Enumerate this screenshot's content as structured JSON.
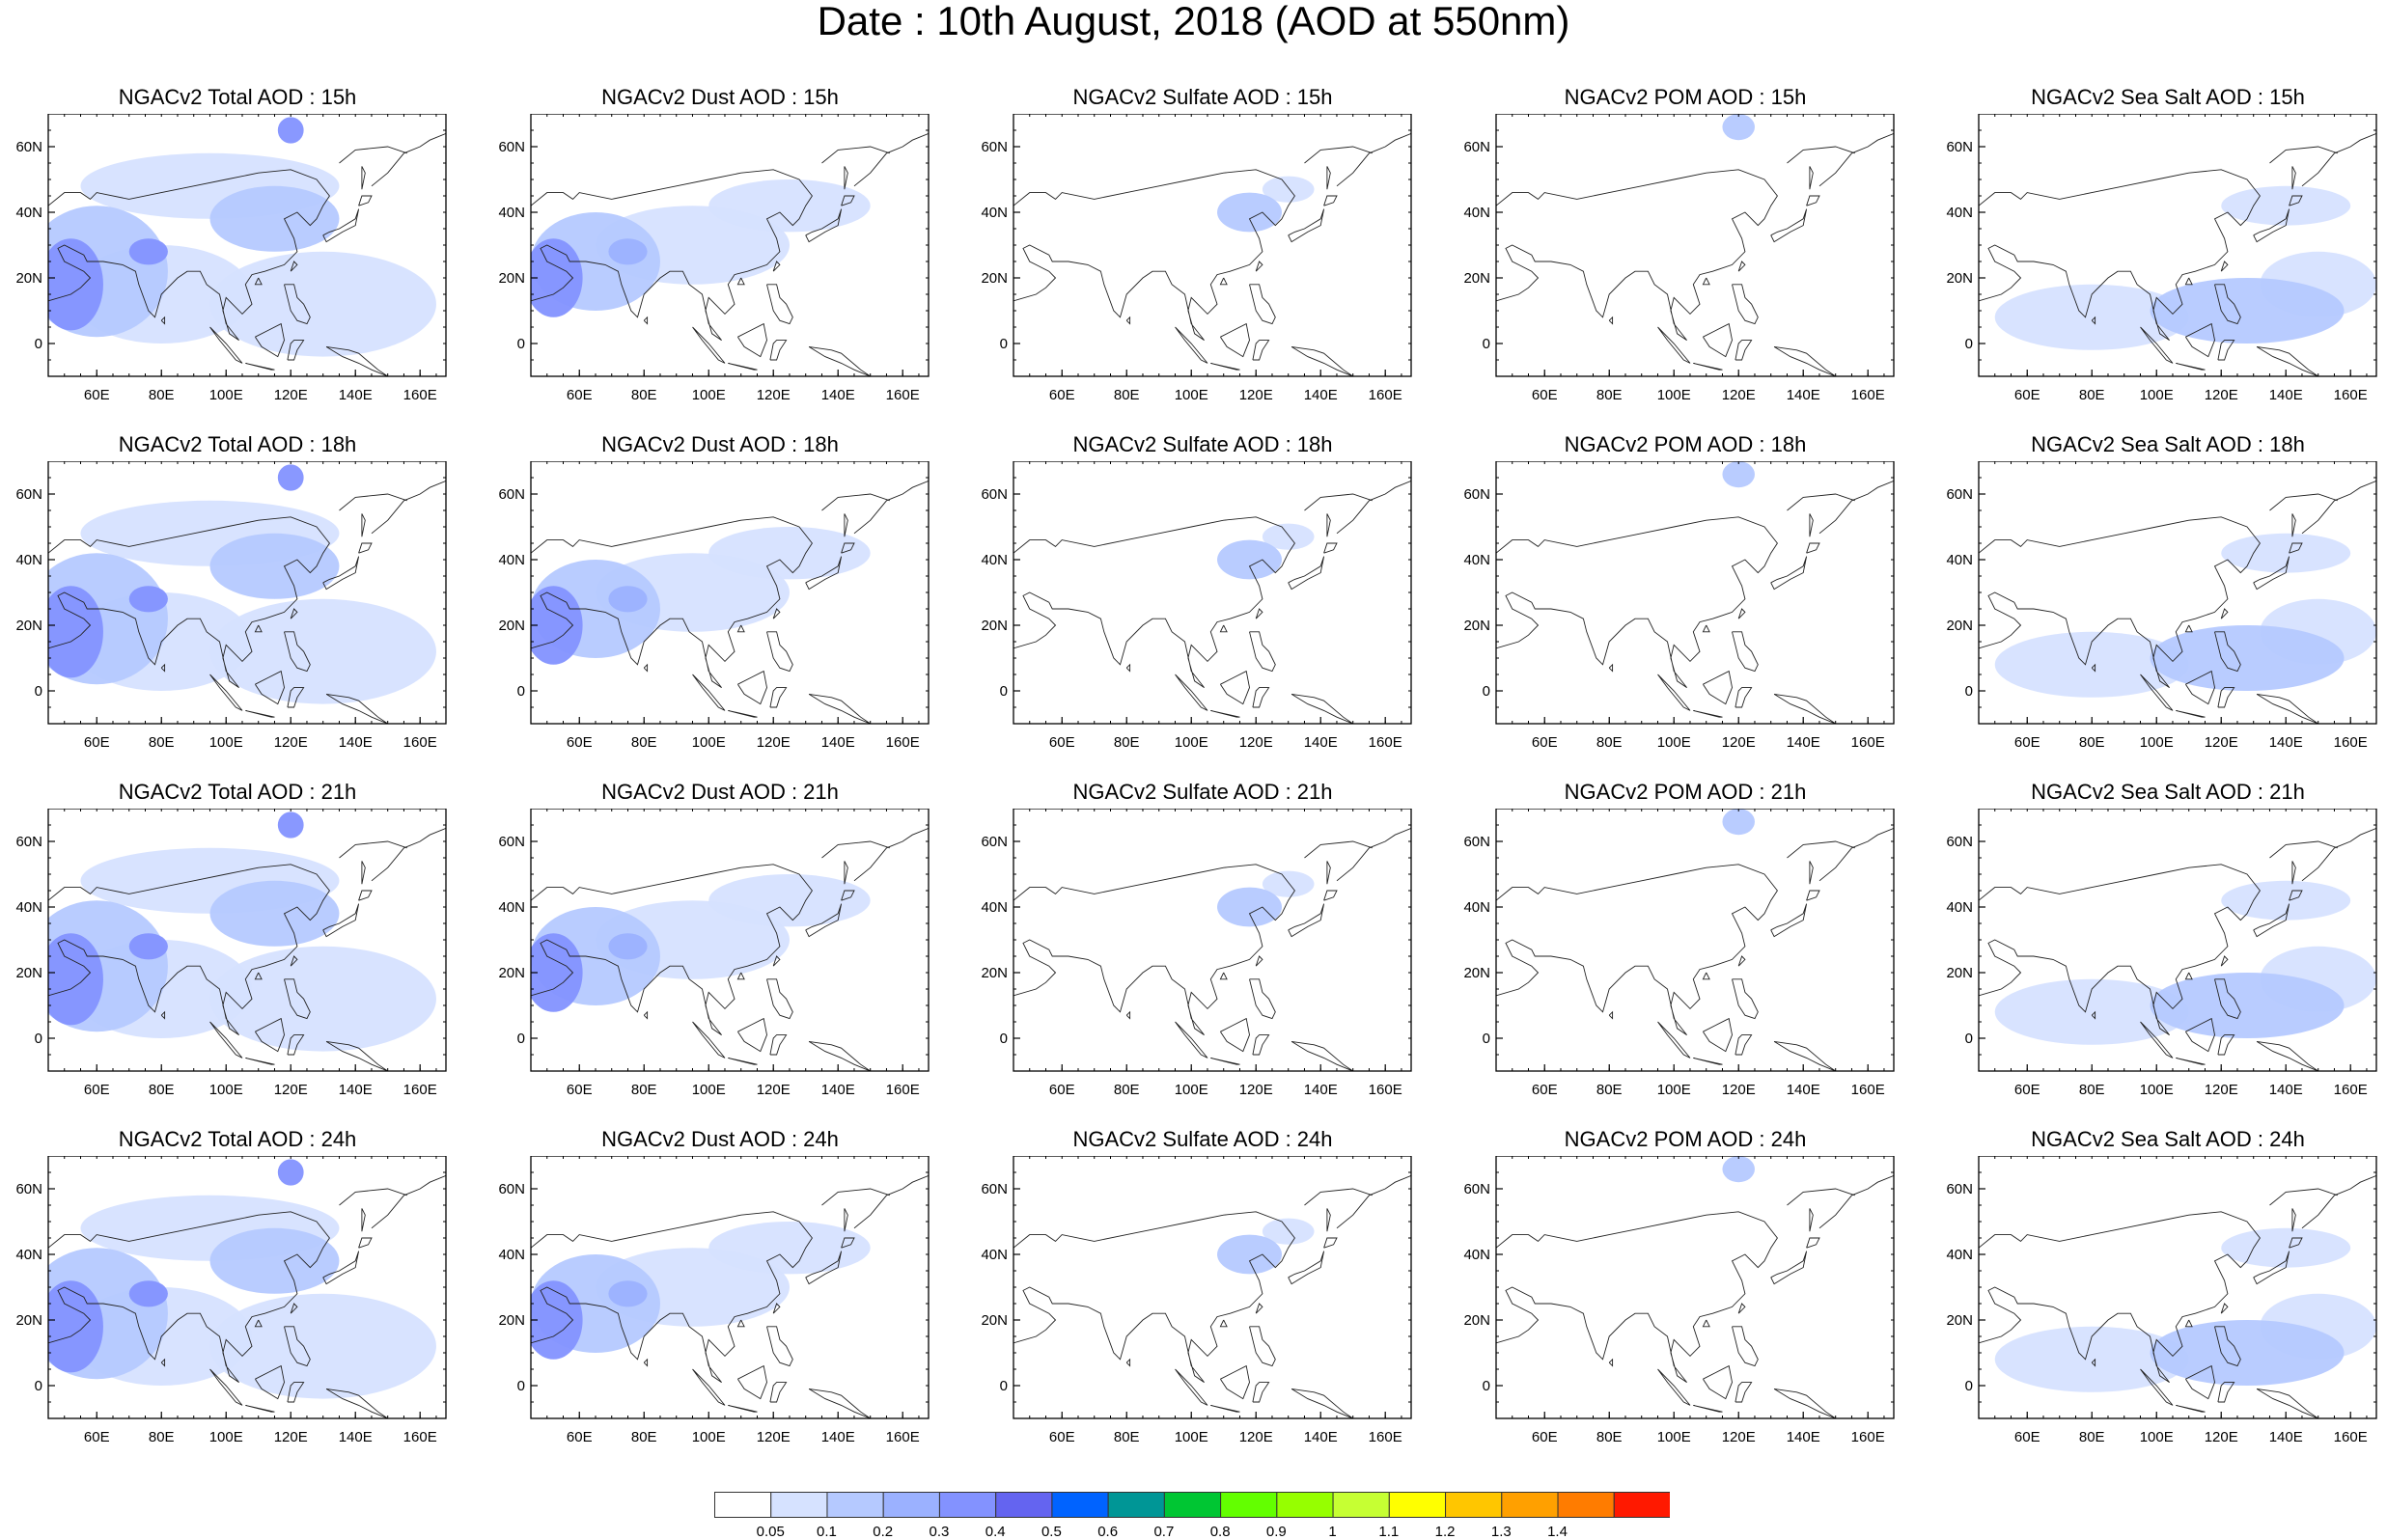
{
  "title": "Date : 10th August, 2018 (AOD at 550nm)",
  "map_extent": {
    "lon": [
      45,
      168
    ],
    "lat": [
      -10,
      70
    ]
  },
  "axes": {
    "lon_ticks": [
      60,
      80,
      100,
      120,
      140,
      160
    ],
    "lon_tick_labels": [
      "60E",
      "80E",
      "100E",
      "120E",
      "140E",
      "160E"
    ],
    "lat_ticks": [
      0,
      20,
      40,
      60
    ],
    "lat_tick_labels": [
      "0",
      "20N",
      "40N",
      "60N"
    ]
  },
  "panels": [
    {
      "title": "NGACv2 Total AOD : 15h",
      "species": "total",
      "hour": 15
    },
    {
      "title": "NGACv2 Dust AOD : 15h",
      "species": "dust",
      "hour": 15
    },
    {
      "title": "NGACv2 Sulfate AOD : 15h",
      "species": "sulfate",
      "hour": 15
    },
    {
      "title": "NGACv2 POM AOD : 15h",
      "species": "pom",
      "hour": 15
    },
    {
      "title": "NGACv2 Sea Salt AOD : 15h",
      "species": "seasalt",
      "hour": 15
    },
    {
      "title": "NGACv2 Total AOD : 18h",
      "species": "total",
      "hour": 18
    },
    {
      "title": "NGACv2 Dust AOD : 18h",
      "species": "dust",
      "hour": 18
    },
    {
      "title": "NGACv2 Sulfate AOD : 18h",
      "species": "sulfate",
      "hour": 18
    },
    {
      "title": "NGACv2 POM AOD : 18h",
      "species": "pom",
      "hour": 18
    },
    {
      "title": "NGACv2 Sea Salt AOD : 18h",
      "species": "seasalt",
      "hour": 18
    },
    {
      "title": "NGACv2 Total AOD : 21h",
      "species": "total",
      "hour": 21
    },
    {
      "title": "NGACv2 Dust AOD : 21h",
      "species": "dust",
      "hour": 21
    },
    {
      "title": "NGACv2 Sulfate AOD : 21h",
      "species": "sulfate",
      "hour": 21
    },
    {
      "title": "NGACv2 POM AOD : 21h",
      "species": "pom",
      "hour": 21
    },
    {
      "title": "NGACv2 Sea Salt AOD : 21h",
      "species": "seasalt",
      "hour": 21
    },
    {
      "title": "NGACv2 Total AOD : 24h",
      "species": "total",
      "hour": 24
    },
    {
      "title": "NGACv2 Dust AOD : 24h",
      "species": "dust",
      "hour": 24
    },
    {
      "title": "NGACv2 Sulfate AOD : 24h",
      "species": "sulfate",
      "hour": 24
    },
    {
      "title": "NGACv2 POM AOD : 24h",
      "species": "pom",
      "hour": 24
    },
    {
      "title": "NGACv2 Sea Salt  AOD : 24h",
      "species": "seasalt",
      "hour": 24
    }
  ],
  "colorbar": {
    "labels": [
      "0.05",
      "0.1",
      "0.2",
      "0.3",
      "0.4",
      "0.5",
      "0.6",
      "0.7",
      "0.8",
      "0.9",
      "1",
      "1.1",
      "1.2",
      "1.3",
      "1.4"
    ],
    "colors": [
      "#ffffff",
      "#d6e2ff",
      "#b5c9ff",
      "#9bb1ff",
      "#8392ff",
      "#6464f0",
      "#0063ff",
      "#009696",
      "#00c633",
      "#63ff00",
      "#96ff00",
      "#c6ff33",
      "#ffff00",
      "#ffc600",
      "#ffa000",
      "#ff7c00",
      "#ff1900"
    ]
  },
  "plumes": {
    "total": [
      {
        "lon": 52,
        "lat": 18,
        "rlon": 10,
        "rlat": 14,
        "level": 4
      },
      {
        "lon": 76,
        "lat": 28,
        "rlon": 6,
        "rlat": 4,
        "level": 4
      },
      {
        "lon": 120,
        "lat": 65,
        "rlon": 4,
        "rlat": 4,
        "level": 4
      },
      {
        "lon": 60,
        "lat": 22,
        "rlon": 22,
        "rlat": 20,
        "level": 2
      },
      {
        "lon": 80,
        "lat": 15,
        "rlon": 28,
        "rlat": 15,
        "level": 1
      },
      {
        "lon": 115,
        "lat": 38,
        "rlon": 20,
        "rlat": 10,
        "level": 2
      },
      {
        "lon": 130,
        "lat": 12,
        "rlon": 35,
        "rlat": 16,
        "level": 1
      },
      {
        "lon": 95,
        "lat": 48,
        "rlon": 40,
        "rlat": 10,
        "level": 1
      }
    ],
    "dust": [
      {
        "lon": 52,
        "lat": 20,
        "rlon": 9,
        "rlat": 12,
        "level": 4
      },
      {
        "lon": 75,
        "lat": 28,
        "rlon": 6,
        "rlat": 4,
        "level": 3
      },
      {
        "lon": 65,
        "lat": 25,
        "rlon": 20,
        "rlat": 15,
        "level": 2
      },
      {
        "lon": 95,
        "lat": 30,
        "rlon": 30,
        "rlat": 12,
        "level": 1
      },
      {
        "lon": 125,
        "lat": 42,
        "rlon": 25,
        "rlat": 8,
        "level": 1
      }
    ],
    "sulfate": [
      {
        "lon": 118,
        "lat": 40,
        "rlon": 10,
        "rlat": 6,
        "level": 2
      },
      {
        "lon": 130,
        "lat": 47,
        "rlon": 8,
        "rlat": 4,
        "level": 1
      }
    ],
    "pom": [
      {
        "lon": 120,
        "lat": 66,
        "rlon": 5,
        "rlat": 4,
        "level": 2
      }
    ],
    "seasalt": [
      {
        "lon": 80,
        "lat": 8,
        "rlon": 30,
        "rlat": 10,
        "level": 1
      },
      {
        "lon": 128,
        "lat": 10,
        "rlon": 30,
        "rlat": 10,
        "level": 2
      },
      {
        "lon": 150,
        "lat": 18,
        "rlon": 18,
        "rlat": 10,
        "level": 1
      },
      {
        "lon": 140,
        "lat": 42,
        "rlon": 20,
        "rlat": 6,
        "level": 1
      }
    ]
  }
}
